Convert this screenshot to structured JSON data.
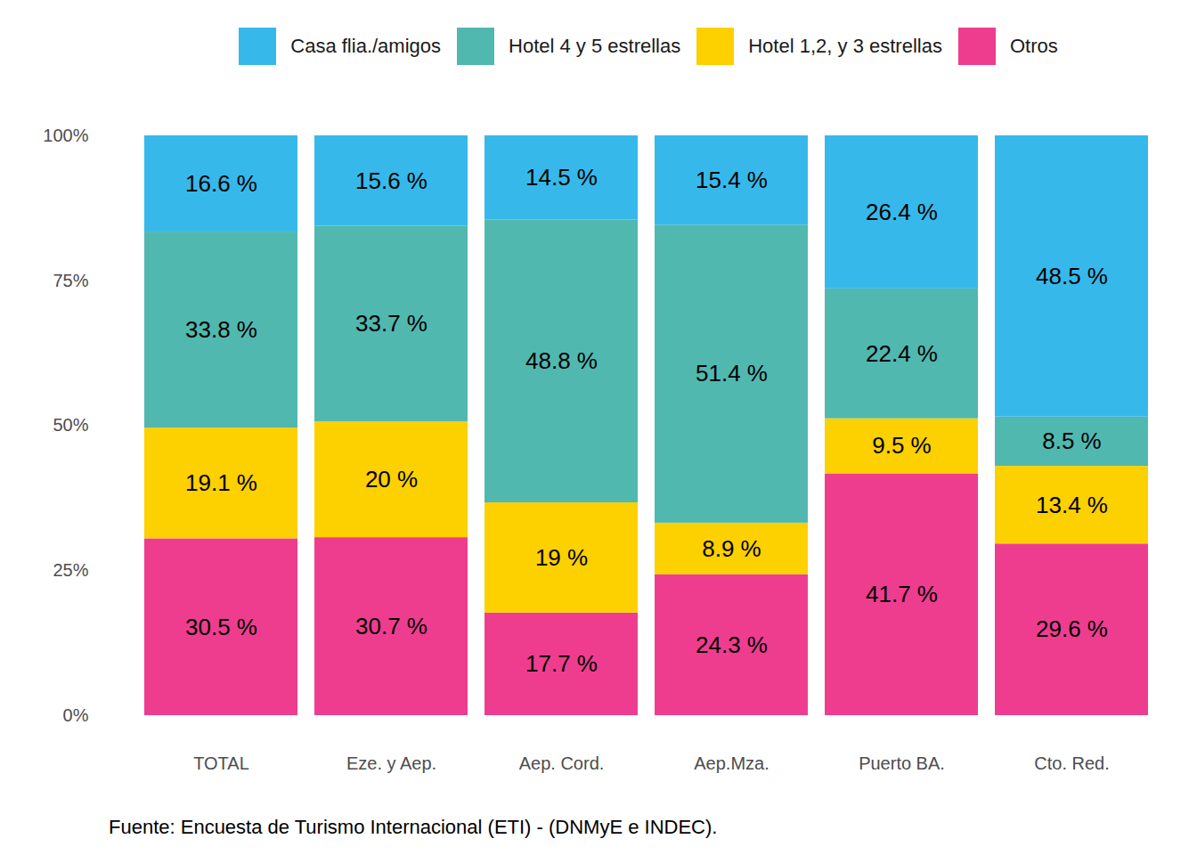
{
  "chart_data": {
    "type": "bar",
    "stacked": true,
    "data_labels": true,
    "grid": false,
    "legend": "top",
    "caption": "Fuente: Encuesta de Turismo Internacional (ETI) - (DNMyE e INDEC).",
    "categories": [
      "TOTAL",
      "Eze. y Aep.",
      "Aep. Cord.",
      "Aep.Mza.",
      "Puerto BA.",
      "Cto. Red."
    ],
    "ylim": [
      0,
      100
    ],
    "yticks": [
      {
        "value": 0,
        "label": "0%"
      },
      {
        "value": 25,
        "label": "25%"
      },
      {
        "value": 50,
        "label": "50%"
      },
      {
        "value": 75,
        "label": "75%"
      },
      {
        "value": 100,
        "label": "100%"
      }
    ],
    "series": [
      {
        "name": "Casa flia./amigos",
        "color": "#36b9ea",
        "values": [
          16.6,
          15.6,
          14.5,
          15.4,
          26.4,
          48.5
        ],
        "value_labels": [
          "16.6 %",
          "15.6 %",
          "14.5 %",
          "15.4 %",
          "26.4 %",
          "48.5 %"
        ]
      },
      {
        "name": "Hotel 4 y 5 estrellas",
        "color": "#51b8b0",
        "values": [
          33.8,
          33.7,
          48.8,
          51.4,
          22.4,
          8.5
        ],
        "value_labels": [
          "33.8 %",
          "33.7 %",
          "48.8 %",
          "51.4 %",
          "22.4 %",
          "8.5 %"
        ]
      },
      {
        "name": "Hotel 1,2, y 3 estrellas",
        "color": "#fdd000",
        "values": [
          19.1,
          20,
          19,
          8.9,
          9.5,
          13.4
        ],
        "value_labels": [
          "19.1 %",
          "20 %",
          "19 %",
          "8.9 %",
          "9.5 %",
          "13.4 %"
        ]
      },
      {
        "name": "Otros",
        "color": "#ee3d8f",
        "values": [
          30.5,
          30.7,
          17.7,
          24.3,
          41.7,
          29.6
        ],
        "value_labels": [
          "30.5 %",
          "30.7 %",
          "17.7 %",
          "24.3 %",
          "41.7 %",
          "29.6 %"
        ]
      }
    ]
  }
}
